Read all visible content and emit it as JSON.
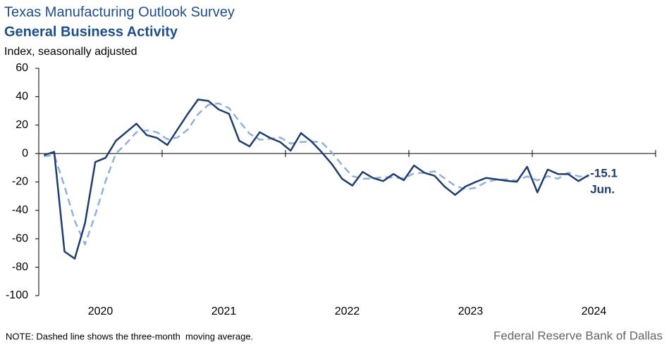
{
  "chart_data": {
    "type": "line",
    "title": "Texas Manufacturing Outlook Survey",
    "subtitle": "General Business Activity",
    "y_label": "Index, seasonally adjusted",
    "note": "NOTE: Dashed line shows the three-month  moving average.",
    "source": "Federal Reserve Bank of Dallas",
    "annotation": "Jun.",
    "categories": [
      "2020",
      null,
      null,
      null,
      null,
      null,
      null,
      null,
      null,
      null,
      null,
      null,
      "2021",
      null,
      null,
      null,
      null,
      null,
      null,
      null,
      null,
      null,
      null,
      null,
      "2022",
      null,
      null,
      null,
      null,
      null,
      null,
      null,
      null,
      null,
      null,
      null,
      "2023",
      null,
      null,
      null,
      null,
      null,
      null,
      null,
      null,
      null,
      null,
      null,
      "2024",
      null,
      null,
      null,
      null,
      null,
      null,
      null,
      null,
      null,
      null,
      null
    ],
    "ylim": [
      -100,
      60
    ],
    "yticks": [
      -100,
      -80,
      -60,
      -40,
      -20,
      0,
      20,
      40,
      60
    ],
    "series": [
      {
        "name": "General Business Activity",
        "color": "#1f3d6d",
        "dashed": false,
        "values": [
          -1.2,
          1.2,
          -69,
          -74,
          -49,
          -6,
          -3,
          9,
          15,
          21,
          13,
          11,
          6,
          17,
          28,
          38,
          37,
          31,
          28,
          9,
          5,
          15,
          11,
          8,
          2,
          14.4,
          8.7,
          1.1,
          -7.3,
          -17.7,
          -22.6,
          -12.9,
          -17.2,
          -19.4,
          -14.4,
          -18.8,
          -8.4,
          -13.5,
          -15.7,
          -23.4,
          -29.1,
          -23.2,
          -20,
          -17.2,
          -18.1,
          -19.2,
          -19.9,
          -9.3,
          -27.4,
          -11.3,
          -14.4,
          -14.5,
          -19.4,
          -15.1,
          null,
          null,
          null,
          null,
          null,
          null
        ]
      },
      {
        "name": "Three-month moving average",
        "color": "#8fb1de",
        "dashed": true,
        "values": [
          -2,
          -1,
          -23,
          -47.3,
          -64,
          -43,
          -19.3,
          0,
          7,
          15,
          16.3,
          15,
          10,
          11.3,
          17,
          27.7,
          34.3,
          35.3,
          32,
          22.7,
          14,
          9.7,
          10.3,
          11.3,
          7,
          8.1,
          8.4,
          8.1,
          0.8,
          -8,
          -15.9,
          -17.7,
          -17.6,
          -16.5,
          -17,
          -17.5,
          -13.9,
          -13.6,
          -12.5,
          -17.5,
          -22.7,
          -25.2,
          -24.1,
          -20.1,
          -18.4,
          -18.2,
          -19.1,
          -16.1,
          -18.9,
          -16,
          -17.7,
          -13.4,
          -16.1,
          -16.3,
          null,
          null,
          null,
          null,
          null,
          null
        ]
      }
    ]
  }
}
